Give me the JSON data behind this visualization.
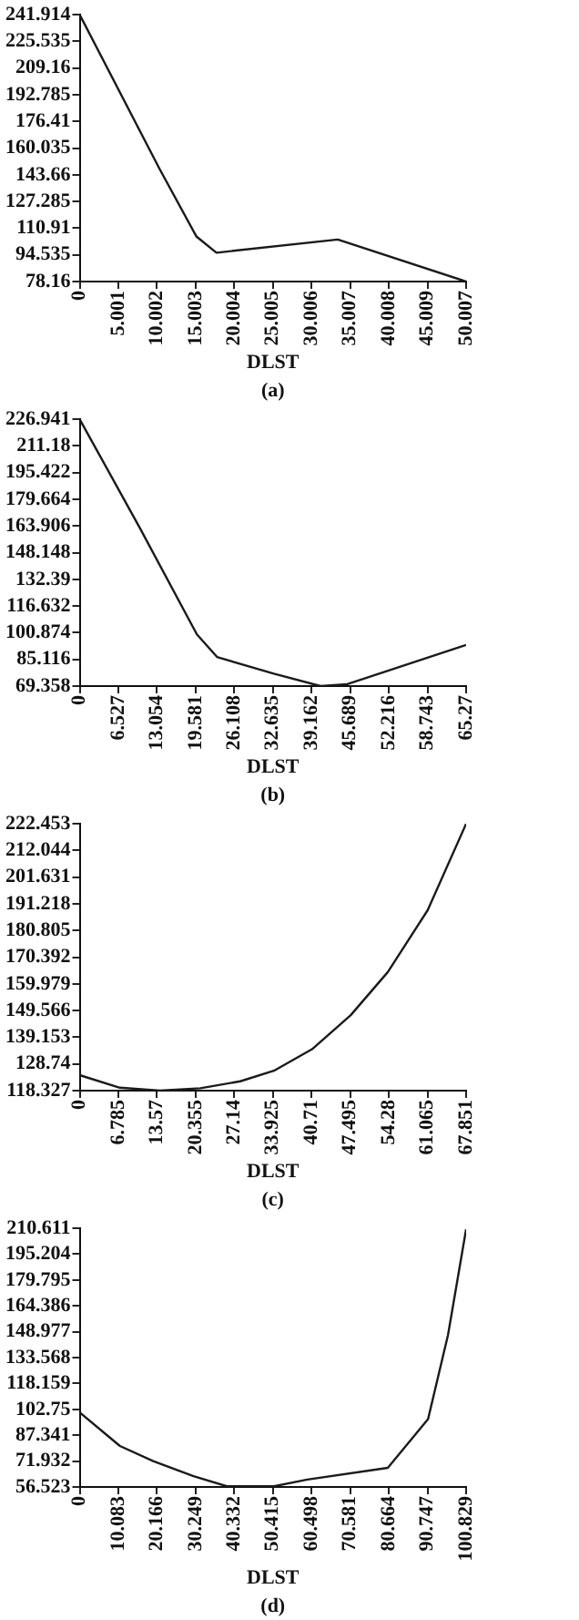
{
  "chart_data": [
    {
      "type": "line",
      "xlabel": "DLST",
      "annotations": [
        "(a)"
      ],
      "color": "#1a1a1a",
      "grid": false,
      "marker": "none",
      "x": [
        0,
        10.3,
        15.1,
        17.7,
        33.4,
        50.007
      ],
      "values": [
        241.9,
        147.6,
        105.9,
        95.9,
        104.0,
        78.2
      ],
      "xlim": [
        0,
        50.007
      ],
      "xticks": [
        0,
        5.001,
        10.002,
        15.003,
        20.004,
        25.005,
        30.006,
        35.007,
        40.008,
        45.009,
        50.007
      ],
      "ylim": [
        78.16,
        241.914
      ],
      "yticks": [
        78.16,
        94.535,
        110.91,
        127.285,
        143.66,
        160.035,
        176.41,
        192.785,
        209.16,
        225.535,
        241.914
      ]
    },
    {
      "type": "line",
      "xlabel": "DLST",
      "annotations": [
        "(b)"
      ],
      "color": "#1a1a1a",
      "grid": false,
      "marker": "none",
      "x": [
        0,
        10.2,
        19.8,
        23.2,
        32.8,
        40.7,
        45.2,
        65.27
      ],
      "values": [
        226.9,
        162.5,
        99.9,
        86.6,
        76.7,
        69.4,
        70.5,
        93.7
      ],
      "xlim": [
        0,
        65.27
      ],
      "xticks": [
        0,
        6.527,
        13.054,
        19.581,
        26.108,
        32.635,
        39.162,
        45.689,
        52.216,
        58.743,
        65.27
      ],
      "ylim": [
        69.358,
        226.941
      ],
      "yticks": [
        69.358,
        85.116,
        100.874,
        116.632,
        132.39,
        148.148,
        163.906,
        179.664,
        195.422,
        211.18,
        226.941
      ]
    },
    {
      "type": "line",
      "xlabel": "DLST",
      "annotations": [
        "(c)"
      ],
      "color": "#1a1a1a",
      "grid": false,
      "marker": "none",
      "x": [
        0,
        7.06,
        14.1,
        21.2,
        28.2,
        34.1,
        40.8,
        47.6,
        54.1,
        61.1,
        67.851
      ],
      "values": [
        124.4,
        119.5,
        118.4,
        119.3,
        122.0,
        126.1,
        134.5,
        147.8,
        164.6,
        188.7,
        222.4
      ],
      "xlim": [
        0,
        67.851
      ],
      "xticks": [
        0,
        6.785,
        13.57,
        20.355,
        27.14,
        33.925,
        40.71,
        47.495,
        54.28,
        61.065,
        67.851
      ],
      "ylim": [
        118.327,
        222.453
      ],
      "yticks": [
        118.327,
        128.74,
        139.153,
        149.566,
        159.979,
        170.392,
        180.805,
        191.218,
        201.631,
        212.044,
        222.453
      ]
    },
    {
      "type": "line",
      "xlabel": "DLST",
      "annotations": [
        "(d)"
      ],
      "color": "#1a1a1a",
      "grid": false,
      "marker": "none",
      "x": [
        0,
        10.5,
        19.2,
        29.7,
        38.4,
        50.7,
        59.4,
        80.4,
        90.9,
        96.1,
        100.829
      ],
      "values": [
        101,
        81,
        72,
        63,
        57,
        57,
        61,
        68,
        97,
        147,
        210
      ],
      "xlim": [
        0,
        100.829
      ],
      "xticks": [
        0,
        10.083,
        20.166,
        30.249,
        40.332,
        50.415,
        60.498,
        70.581,
        80.664,
        90.747,
        100.829
      ],
      "ylim": [
        56.523,
        210.611
      ],
      "yticks": [
        56.523,
        71.932,
        87.341,
        102.75,
        118.159,
        133.568,
        148.977,
        164.386,
        179.795,
        195.204,
        210.611
      ]
    }
  ]
}
